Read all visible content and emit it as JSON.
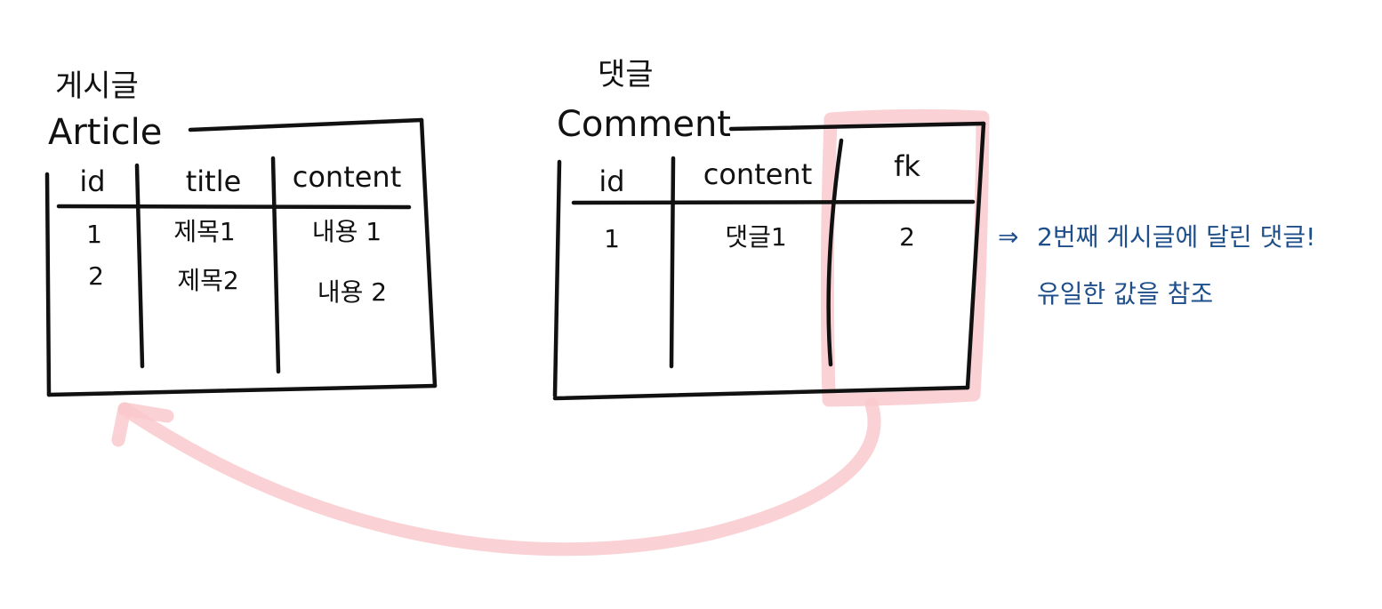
{
  "article": {
    "label_ko": "게시글",
    "name": "Article",
    "headers": [
      "id",
      "title",
      "content"
    ],
    "rows": [
      [
        "1",
        "제목1",
        "내용 1"
      ],
      [
        "2",
        "제목2",
        "내용 2"
      ]
    ]
  },
  "comment": {
    "label_ko": "댓글",
    "name": "Comment",
    "headers": [
      "id",
      "content",
      "fk"
    ],
    "rows": [
      [
        "1",
        "댓글1",
        "2"
      ]
    ]
  },
  "annotation": {
    "arrow": "⇒",
    "line1": "2번째 게시글에 달린 댓글!",
    "line2": "유일한 값을 참조"
  },
  "colors": {
    "ink": "#111111",
    "highlight": "#f9c9cd",
    "note": "#1f4f8a"
  }
}
